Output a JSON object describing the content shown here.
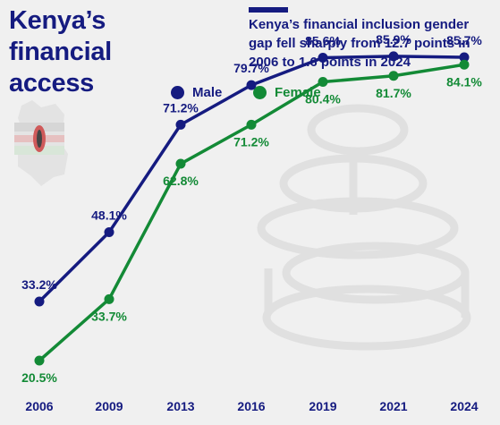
{
  "header": {
    "title": "Kenya’s financial access",
    "subtitle": "Kenya’s financial inclusion gender gap fell sharply from 12.7 points in 2006 to 1.6 points in 2024"
  },
  "colors": {
    "title": "#151b80",
    "male": "#151b80",
    "female": "#138a36",
    "background": "#f0f0f0",
    "watermark": "#e2e2e2"
  },
  "decoration": {
    "map_icon": "kenya-map-flag-icon",
    "watermark_icon": "coin-stack-icon"
  },
  "chart_data": {
    "type": "line",
    "categories": [
      "2006",
      "2009",
      "2013",
      "2016",
      "2019",
      "2021",
      "2024"
    ],
    "series": [
      {
        "name": "Male",
        "values": [
          33.2,
          48.1,
          71.2,
          79.7,
          85.6,
          85.9,
          85.7
        ],
        "labels": [
          "33.2%",
          "48.1%",
          "71.2%",
          "79.7%",
          "85.6%",
          "85.9%",
          "85.7%"
        ]
      },
      {
        "name": "Female",
        "values": [
          20.5,
          33.7,
          62.8,
          71.2,
          80.4,
          81.7,
          84.1
        ],
        "labels": [
          "20.5%",
          "33.7%",
          "62.8%",
          "71.2%",
          "80.4%",
          "81.7%",
          "84.1%"
        ]
      }
    ],
    "legend_position": "top",
    "grid": false
  }
}
